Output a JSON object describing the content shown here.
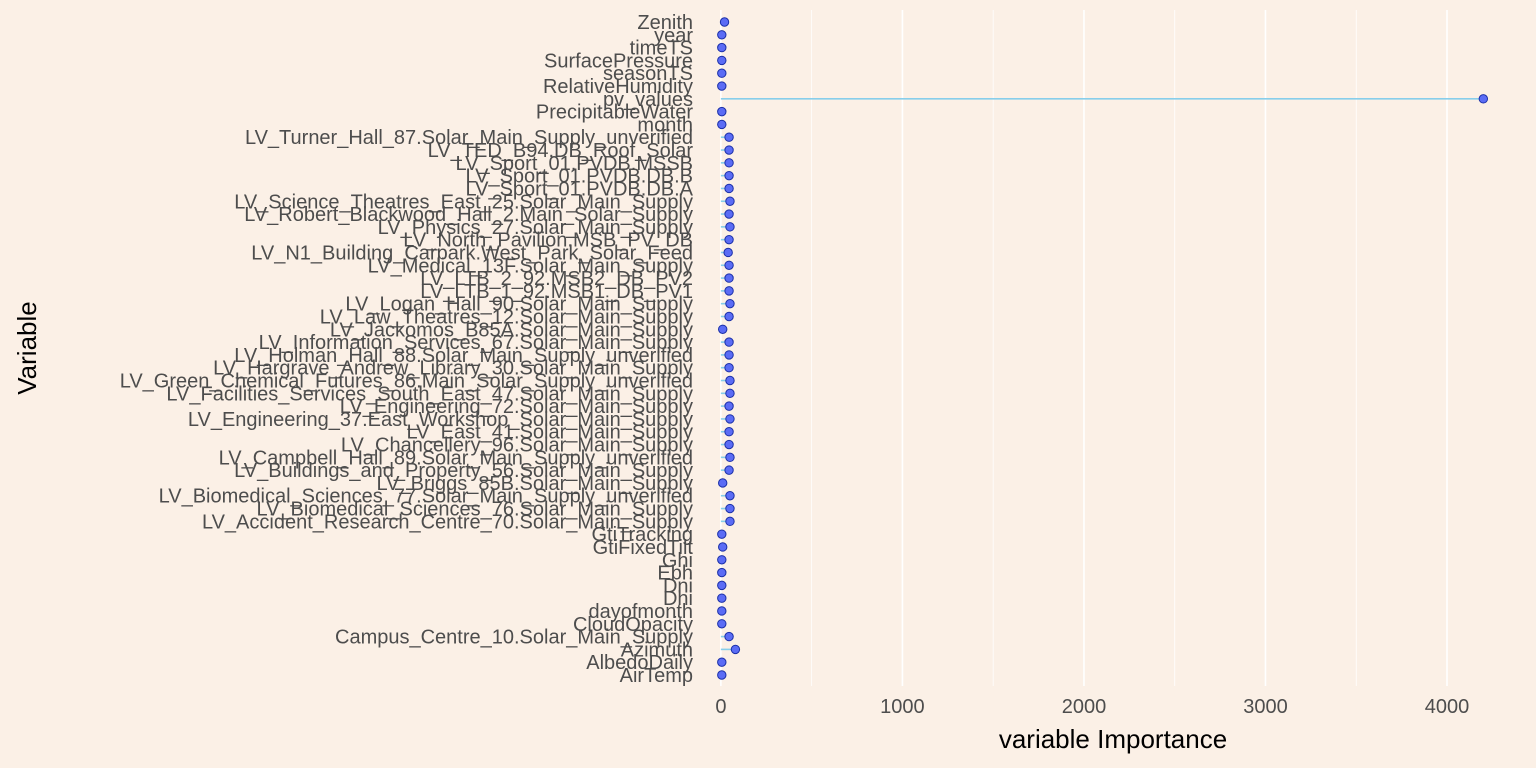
{
  "chart_data": {
    "type": "lollipop",
    "xlabel": "variable Importance",
    "ylabel": "Variable",
    "xlim": [
      -60,
      4380
    ],
    "x_ticks": [
      0,
      1000,
      2000,
      3000,
      4000
    ],
    "x_minor_ticks": [
      500,
      1500,
      2500,
      3500
    ],
    "grid": "vertical",
    "colors": {
      "background": "#FBF0E6",
      "point": "#5B6CF5",
      "stem": "#87CEEB",
      "grid": "#FFFFFF"
    },
    "categories": [
      "Zenith",
      "year",
      "timeTS",
      "SurfacePressure",
      "seasonTS",
      "RelativeHumidity",
      "pv_values",
      "PrecipitableWater",
      "month",
      "LV_Turner_Hall_87.Solar_Main_Supply_unverified",
      "LV_TED_B94.DB_Roof_Solar",
      "LV_Sport_01.PVDB.MSSB",
      "LV_Sport_01.PVDB.DB.B",
      "LV_Sport_01.PVDB.DB.A",
      "LV_Science_Theatres_East_25.Solar_Main_Supply",
      "LV_Robert_Blackwood_Hall_2.Main_Solar_Supply",
      "LV_Physics_27.Solar_Main_Supply",
      "LV_North_Pavilion.MSB_PV_DB",
      "LV_N1_Building_Carpark.West_Park_Solar_Feed",
      "LV_Medical_13F.Solar_Main_Supply",
      "LV_LTB_2_92.MSB2_DB_PV2",
      "LV_LTB_1_92.MSB1_DB_PV1",
      "LV_Logan_Hall_90.Solar_Main_Supply",
      "LV_Law_Theatres_12.Solar_Main_Supply",
      "LV_Jackomos_B85A.Solar_Main_Supply",
      "LV_Information_Services_67.Solar_Main_Supply",
      "LV_Holman_Hall_88.Solar_Main_Supply_unverified",
      "LV_Hargrave_Andrew_Library_30.Solar_Main_Supply",
      "LV_Green_Chemical_Futures_86.Main_Solar_Supply_unverified",
      "LV_Facilities_Services_South_East_47.Solar_Main_Supply",
      "LV_Engineering_72.Solar_Main_Supply",
      "LV_Engineering_37.East_Workshop_Solar_Main_Supply",
      "LV_East_41.Solar_Main_Supply",
      "LV_Chancellery_96.Solar_Main_Supply",
      "LV_Campbell_Hall_89.Solar_Main_Supply_unverified",
      "LV_Buildings_and_Property_56.Solar_Main_Supply",
      "LV_Briggs_85B.Solar_Main_Supply",
      "LV_Biomedical_Sciences_77.Solar_Main_Supply_unverified",
      "LV_Biomedical_Sciences_76.Solar_Main_Supply",
      "LV_Accident_Research_Centre_70.Solar_Main_Supply",
      "GtiTracking",
      "GtiFixedTilt",
      "Ghi",
      "Ebh",
      "Dni",
      "Dhi",
      "dayofmonth",
      "CloudOpacity",
      "Campus_Centre_10.Solar_Main_Supply",
      "Azimuth",
      "AlbedoDaily",
      "AirTemp"
    ],
    "values": [
      20,
      5,
      5,
      5,
      5,
      5,
      4200,
      5,
      5,
      45,
      45,
      45,
      45,
      45,
      50,
      45,
      50,
      45,
      40,
      45,
      45,
      45,
      50,
      45,
      10,
      45,
      45,
      45,
      50,
      50,
      45,
      50,
      45,
      45,
      50,
      45,
      10,
      50,
      50,
      50,
      5,
      10,
      5,
      5,
      5,
      5,
      5,
      5,
      45,
      80,
      5,
      5
    ]
  }
}
